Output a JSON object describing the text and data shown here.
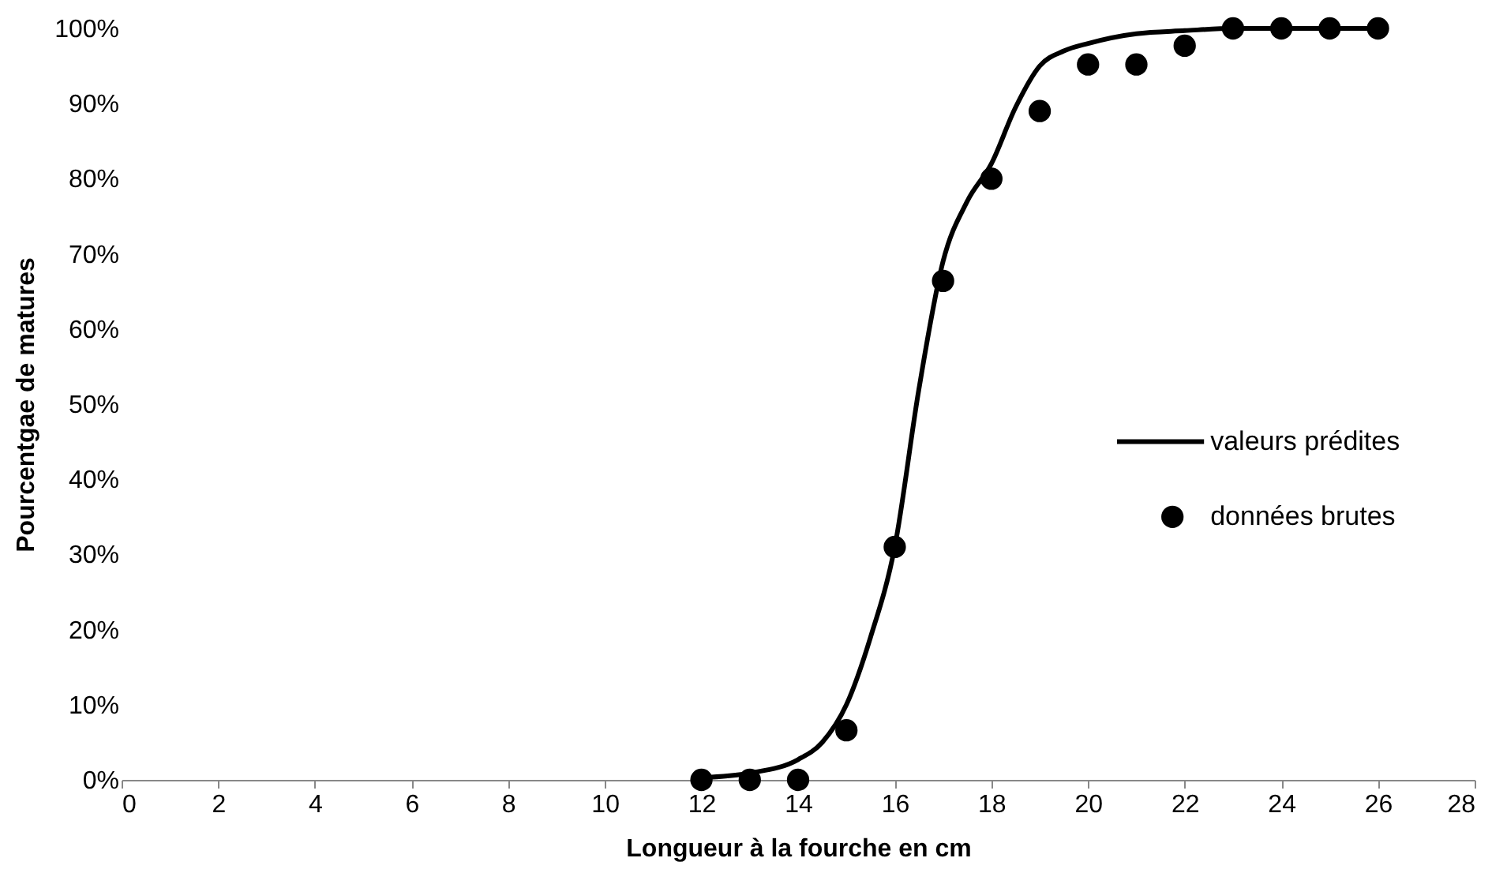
{
  "chart_data": {
    "type": "scatter",
    "xlabel": "Longueur à la fourche en cm",
    "ylabel": "Pourcentgae de matures",
    "xlim": [
      0,
      28
    ],
    "xticks": [
      0,
      2,
      4,
      6,
      8,
      10,
      12,
      14,
      16,
      18,
      20,
      22,
      24,
      26,
      28
    ],
    "ylim": [
      0,
      100
    ],
    "yticks": [
      {
        "value": 0,
        "label": "0%"
      },
      {
        "value": 10,
        "label": "10%"
      },
      {
        "value": 20,
        "label": "20%"
      },
      {
        "value": 30,
        "label": "30%"
      },
      {
        "value": 40,
        "label": "40%"
      },
      {
        "value": 50,
        "label": "50%"
      },
      {
        "value": 60,
        "label": "60%"
      },
      {
        "value": 70,
        "label": "70%"
      },
      {
        "value": 80,
        "label": "80%"
      },
      {
        "value": 90,
        "label": "90%"
      },
      {
        "value": 100,
        "label": "100%"
      }
    ],
    "grid": false,
    "legend": "right",
    "series": [
      {
        "name": "valeurs prédites",
        "type": "line",
        "color": "#000000",
        "marker": "none",
        "line_style": "solid",
        "x": [
          12,
          13,
          14,
          14.5,
          15,
          15.5,
          16,
          16.5,
          17,
          17.5,
          18,
          18.5,
          19,
          19.5,
          20,
          21,
          22,
          23,
          24,
          25,
          26
        ],
        "values": [
          0.3,
          0.9,
          2.7,
          5,
          10,
          19,
          31,
          52,
          69,
          77,
          82,
          89.5,
          95,
          97,
          98,
          99.3,
          99.7,
          100,
          100,
          100,
          100
        ]
      },
      {
        "name": "données brutes",
        "color": "#000000",
        "marker": "circle",
        "x": [
          12,
          13,
          14,
          15,
          16,
          17,
          18,
          19,
          20,
          21,
          22,
          23,
          24,
          25,
          26
        ],
        "values": [
          0,
          0,
          0,
          6.6,
          31,
          66.4,
          80,
          89,
          95.2,
          95.2,
          97.7,
          100,
          100,
          100,
          100
        ]
      }
    ]
  }
}
